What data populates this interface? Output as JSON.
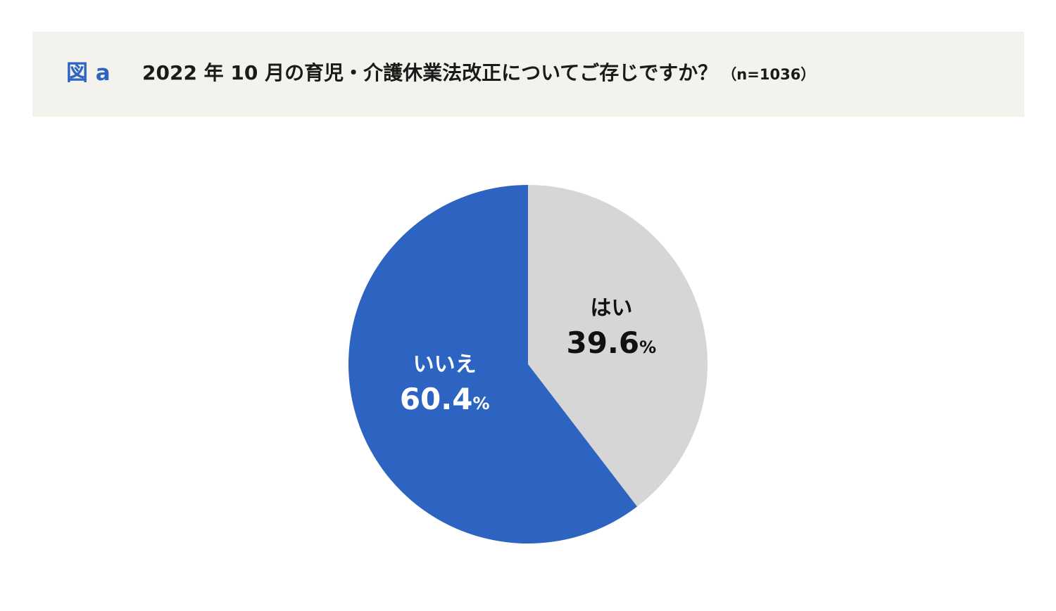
{
  "figure_label": "図 a",
  "title": "2022 年 10 月の育児・介護休業法改正についてご存じですか？",
  "sample_size": "（n=1036）",
  "colors": {
    "header_band": "#f4f2ec",
    "figure_label": "#2e64c1",
    "yes_slice": "#d6d6d6",
    "no_slice": "#2e64c1"
  },
  "chart_data": {
    "type": "pie",
    "title": "2022 年 10 月の育児・介護休業法改正についてご存じですか？",
    "sample_size": "n=1036",
    "unit": "%",
    "slices": [
      {
        "label": "はい",
        "value": 39.6,
        "value_text": "39.6",
        "unit_text": "%",
        "color": "#d6d6d6",
        "text_color": "#111111"
      },
      {
        "label": "いいえ",
        "value": 60.4,
        "value_text": "60.4",
        "unit_text": "%",
        "color": "#2e64c1",
        "text_color": "#ffffff"
      }
    ]
  }
}
